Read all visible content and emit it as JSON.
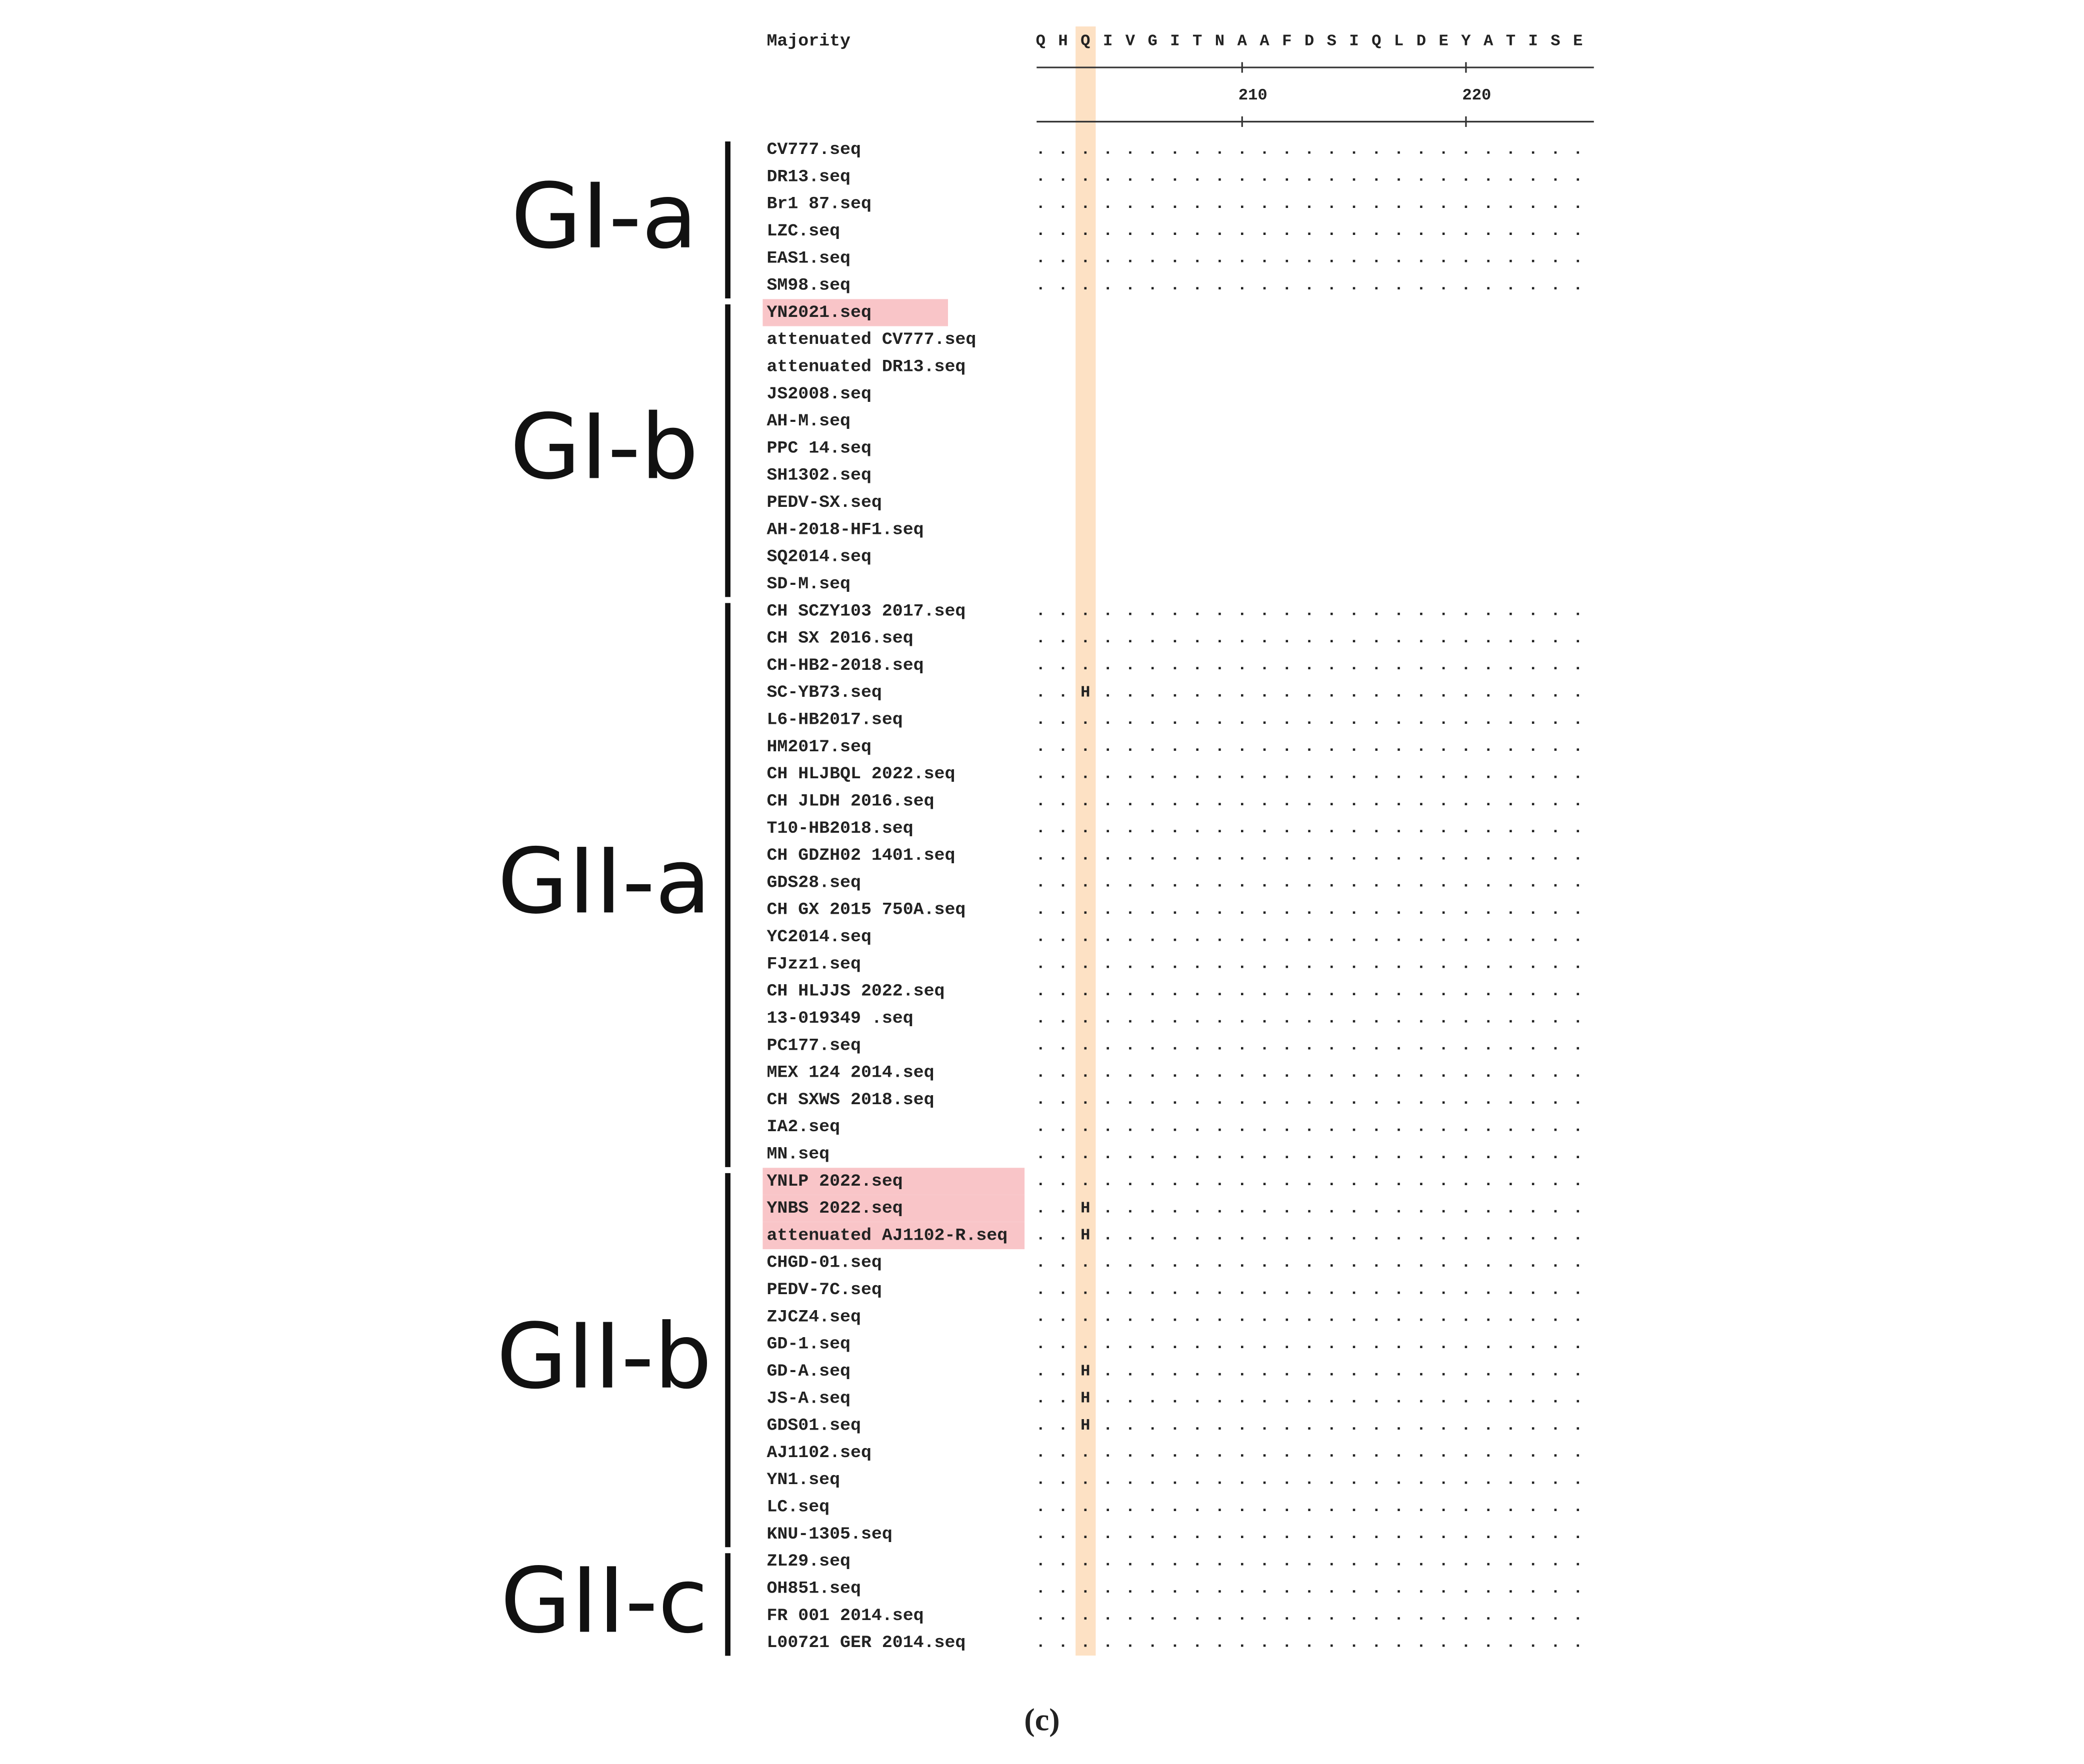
{
  "majority": {
    "label": "Majority",
    "sequence": "QHQIVGITNAAFDSIQLDEYATISE"
  },
  "ruler": {
    "ticks": [
      210,
      220
    ]
  },
  "groups": [
    {
      "label": "GI-a",
      "rows": [
        {
          "name": "CV777.seq",
          "sequence": "........................."
        },
        {
          "name": "DR13.seq",
          "sequence": "........................."
        },
        {
          "name": "Br1 87.seq",
          "sequence": "........................."
        },
        {
          "name": "LZC.seq",
          "sequence": "........................."
        },
        {
          "name": "EAS1.seq",
          "sequence": "........................."
        },
        {
          "name": "SM98.seq",
          "sequence": "........................."
        }
      ]
    },
    {
      "label": "GI-b",
      "rows": [
        {
          "name": "YN2021.seq",
          "highlight": true
        },
        {
          "name": "attenuated CV777.seq"
        },
        {
          "name": "attenuated DR13.seq"
        },
        {
          "name": "JS2008.seq"
        },
        {
          "name": "AH-M.seq"
        },
        {
          "name": "PPC 14.seq"
        },
        {
          "name": "SH1302.seq"
        },
        {
          "name": "PEDV-SX.seq"
        },
        {
          "name": "AH-2018-HF1.seq"
        },
        {
          "name": "SQ2014.seq"
        },
        {
          "name": "SD-M.seq"
        }
      ]
    },
    {
      "label": "GII-a",
      "rows": [
        {
          "name": "CH SCZY103 2017.seq",
          "sequence": "........................."
        },
        {
          "name": "CH SX 2016.seq",
          "sequence": "........................."
        },
        {
          "name": "CH-HB2-2018.seq",
          "sequence": "........................."
        },
        {
          "name": "SC-YB73.seq",
          "sequence": "..H......................"
        },
        {
          "name": "L6-HB2017.seq",
          "sequence": "........................."
        },
        {
          "name": "HM2017.seq",
          "sequence": "........................."
        },
        {
          "name": "CH HLJBQL 2022.seq",
          "sequence": "........................."
        },
        {
          "name": "CH JLDH 2016.seq",
          "sequence": "........................."
        },
        {
          "name": "T10-HB2018.seq",
          "sequence": "........................."
        },
        {
          "name": "CH GDZH02 1401.seq",
          "sequence": "........................."
        },
        {
          "name": "GDS28.seq",
          "sequence": "........................."
        },
        {
          "name": "CH GX 2015 750A.seq",
          "sequence": "........................."
        },
        {
          "name": "YC2014.seq",
          "sequence": "........................."
        },
        {
          "name": "FJzz1.seq",
          "sequence": "........................."
        },
        {
          "name": "CH HLJJS 2022.seq",
          "sequence": "........................."
        },
        {
          "name": "13-019349 .seq",
          "sequence": "........................."
        },
        {
          "name": "PC177.seq",
          "sequence": "........................."
        },
        {
          "name": "MEX 124 2014.seq",
          "sequence": "........................."
        },
        {
          "name": "CH SXWS 2018.seq",
          "sequence": "........................."
        },
        {
          "name": "IA2.seq",
          "sequence": "........................."
        },
        {
          "name": "MN.seq",
          "sequence": "........................."
        }
      ]
    },
    {
      "label": "GII-b",
      "rows": [
        {
          "name": "YNLP 2022.seq",
          "highlight": true,
          "sequence": "........................."
        },
        {
          "name": "YNBS 2022.seq",
          "highlight": true,
          "sequence": "..H......................"
        },
        {
          "name": "attenuated AJ1102-R.seq",
          "highlight": true,
          "sequence": "..H......................"
        },
        {
          "name": "CHGD-01.seq",
          "sequence": "........................."
        },
        {
          "name": "PEDV-7C.seq",
          "sequence": "........................."
        },
        {
          "name": "ZJCZ4.seq",
          "sequence": "........................."
        },
        {
          "name": "GD-1.seq",
          "sequence": "........................."
        },
        {
          "name": "GD-A.seq",
          "sequence": "..H......................"
        },
        {
          "name": "JS-A.seq",
          "sequence": "..H......................"
        },
        {
          "name": "GDS01.seq",
          "sequence": "..H......................"
        },
        {
          "name": "AJ1102.seq",
          "sequence": "........................."
        },
        {
          "name": "YN1.seq",
          "sequence": "........................."
        },
        {
          "name": "LC.seq",
          "sequence": "........................."
        },
        {
          "name": "KNU-1305.seq",
          "sequence": "........................."
        }
      ]
    },
    {
      "label": "GII-c",
      "rows": [
        {
          "name": "ZL29.seq",
          "sequence": "........................."
        },
        {
          "name": "OH851.seq",
          "sequence": "........................."
        },
        {
          "name": "FR 001 2014.seq",
          "sequence": "........................."
        },
        {
          "name": "L00721 GER 2014.seq",
          "sequence": "........................."
        }
      ]
    }
  ],
  "caption": "(c)"
}
